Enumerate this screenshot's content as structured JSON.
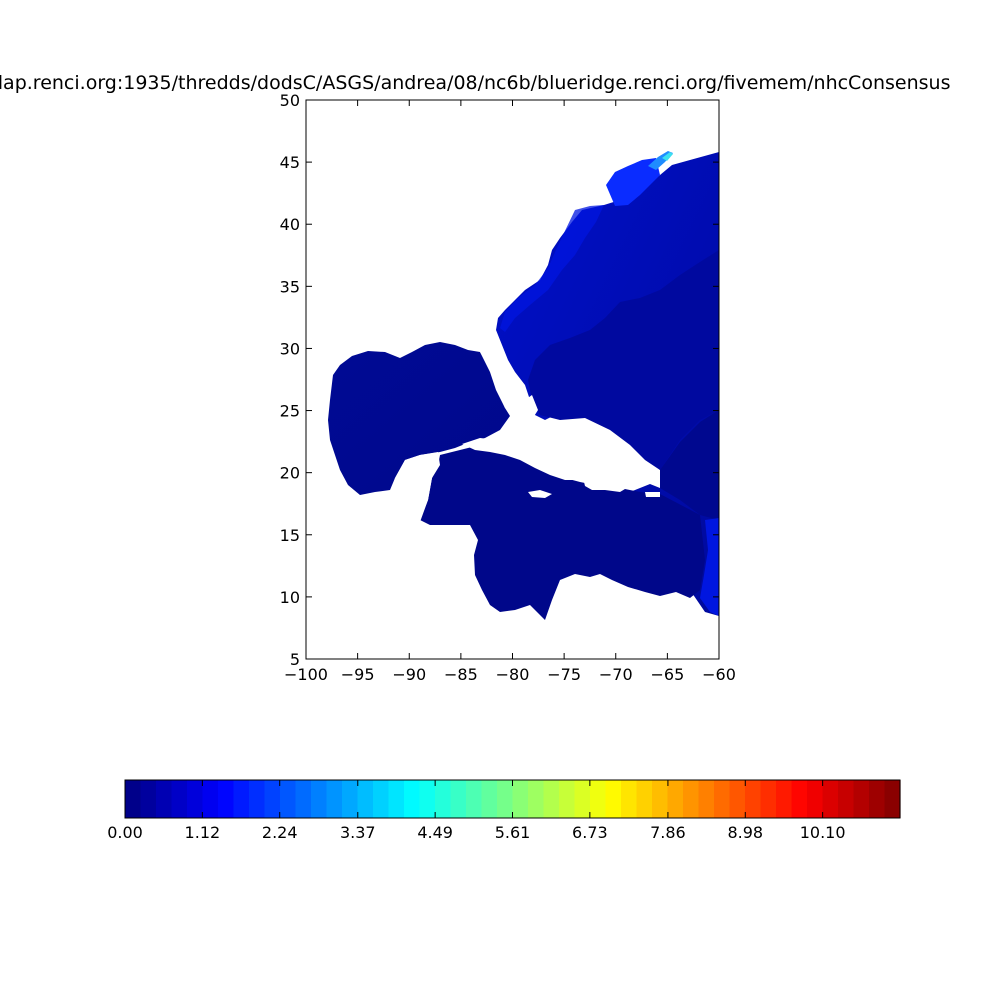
{
  "title": "dap.renci.org:1935/thredds/dodsC/ASGS/andrea/08/nc6b/blueridge.renci.org/fivemem/nhcConsensus",
  "map": {
    "xlim": [
      -100,
      -60
    ],
    "ylim": [
      5,
      50
    ],
    "x_ticks": [
      "−100",
      "−95",
      "−90",
      "−85",
      "−80",
      "−75",
      "−70",
      "−65",
      "−60"
    ],
    "y_ticks": [
      "5",
      "10",
      "15",
      "20",
      "25",
      "30",
      "35",
      "40",
      "45",
      "50"
    ],
    "colormap": "jet",
    "background_color": "#ffffff"
  },
  "colorbar": {
    "orientation": "horizontal",
    "vmin": 0.0,
    "vmax": 11.22,
    "levels": 50,
    "tick_labels": [
      "0.00",
      "1.12",
      "2.24",
      "3.37",
      "4.49",
      "5.61",
      "6.73",
      "7.86",
      "8.98",
      "10.10"
    ]
  }
}
